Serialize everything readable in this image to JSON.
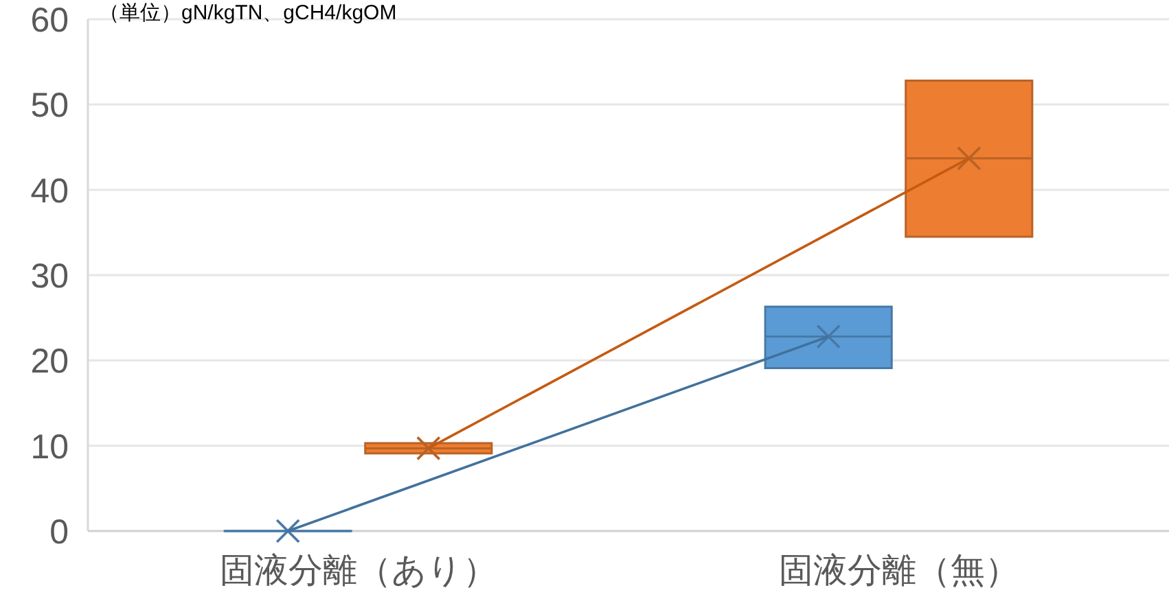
{
  "chart_data": {
    "type": "box",
    "annotations": [
      "（単位）gN/kgTN、gCH4/kgOM"
    ],
    "categories": [
      "固液分離（あり）",
      "固液分離（無）"
    ],
    "series": [
      {
        "color": "#5b9bd5",
        "boxes": [
          {
            "low": 0,
            "q1": 0,
            "median": 0,
            "q3": 0,
            "high": 0,
            "mean": 0
          },
          {
            "low": 19.1,
            "q1": 19.1,
            "median": 22.8,
            "q3": 26.3,
            "high": 26.3,
            "mean": 22.8
          }
        ]
      },
      {
        "color": "#ed7d31",
        "boxes": [
          {
            "low": 9.1,
            "q1": 9.1,
            "median": 9.7,
            "q3": 10.3,
            "high": 10.3,
            "mean": 9.7
          },
          {
            "low": 34.5,
            "q1": 34.5,
            "median": 43.7,
            "q3": 52.8,
            "high": 52.8,
            "mean": 43.7
          }
        ]
      },
      {
        "type": "line",
        "color": "#41719c",
        "values": [
          0,
          22.8
        ]
      },
      {
        "type": "line",
        "color": "#c55a11",
        "values": [
          9.7,
          43.7
        ]
      }
    ],
    "ylim": [
      0,
      60
    ],
    "yticks": [
      0,
      10,
      20,
      30,
      40,
      50,
      60
    ],
    "grid": "y"
  }
}
